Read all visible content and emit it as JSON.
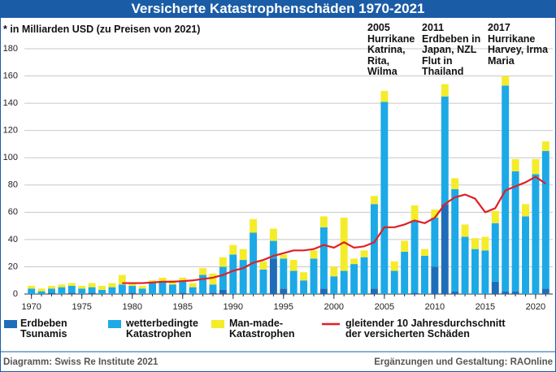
{
  "chart_data": {
    "type": "bar",
    "title": "Versicherte Katastrophenschäden 1970-2021",
    "subtitle": "* in Milliarden USD (zu Preisen von 2021)",
    "x": [
      1970,
      1971,
      1972,
      1973,
      1974,
      1975,
      1976,
      1977,
      1978,
      1979,
      1980,
      1981,
      1982,
      1983,
      1984,
      1985,
      1986,
      1987,
      1988,
      1989,
      1990,
      1991,
      1992,
      1993,
      1994,
      1995,
      1996,
      1997,
      1998,
      1999,
      2000,
      2001,
      2002,
      2003,
      2004,
      2005,
      2006,
      2007,
      2008,
      2009,
      2010,
      2011,
      2012,
      2013,
      2014,
      2015,
      2016,
      2017,
      2018,
      2019,
      2020,
      2021
    ],
    "xlim": [
      1969.3,
      2021.7
    ],
    "xticks": [
      1970,
      1975,
      1980,
      1985,
      1990,
      1995,
      2000,
      2005,
      2010,
      2015,
      2020
    ],
    "ylim": [
      0,
      180
    ],
    "yticks": [
      0,
      20,
      40,
      60,
      80,
      100,
      120,
      140,
      160,
      180
    ],
    "grid": true,
    "series": [
      {
        "name": "Erdbeben\nTsunamis",
        "type": "bar",
        "color": "#1f6db8",
        "values": [
          0,
          0,
          1,
          0,
          1,
          0,
          1,
          0,
          0,
          0,
          1,
          0,
          0,
          0,
          0,
          1,
          0,
          0,
          1,
          3,
          0,
          0,
          0,
          0,
          26,
          4,
          0,
          0,
          0,
          4,
          0,
          0,
          0,
          0,
          4,
          0,
          0,
          0,
          1,
          0,
          20,
          66,
          2,
          0,
          0,
          0,
          9,
          2,
          2,
          0,
          0,
          4
        ]
      },
      {
        "name": "wetterbedingte\nKatastrophen",
        "type": "bar",
        "color": "#1ca9e6",
        "values": [
          4,
          2,
          3,
          5,
          5,
          4,
          4,
          3,
          5,
          7,
          5,
          4,
          8,
          9,
          7,
          8,
          5,
          14,
          6,
          17,
          29,
          25,
          45,
          18,
          13,
          22,
          17,
          10,
          26,
          45,
          13,
          17,
          22,
          27,
          62,
          141,
          17,
          31,
          53,
          28,
          36,
          79,
          75,
          42,
          33,
          32,
          43,
          151,
          88,
          57,
          88,
          101
        ]
      },
      {
        "name": "Man-made-\nKatastrophen",
        "type": "bar",
        "color": "#f4ec2a",
        "values": [
          2,
          2,
          2,
          2,
          2,
          2,
          3,
          3,
          3,
          7,
          2,
          2,
          2,
          3,
          3,
          3,
          3,
          5,
          8,
          7,
          7,
          8,
          10,
          6,
          9,
          3,
          8,
          6,
          6,
          8,
          7,
          39,
          4,
          5,
          6,
          8,
          7,
          8,
          11,
          5,
          6,
          9,
          8,
          9,
          8,
          10,
          9,
          7,
          9,
          9,
          11,
          7
        ]
      },
      {
        "name": "gleitender 10 Jahresdurchschnitt\nder versicherten Schäden",
        "type": "line",
        "color": "#e01f26",
        "values": [
          null,
          null,
          null,
          null,
          null,
          null,
          null,
          null,
          null,
          8,
          8,
          8,
          8.5,
          9,
          9,
          9.5,
          10,
          11,
          12,
          14,
          17,
          19,
          23,
          25,
          28,
          30,
          32,
          32,
          33,
          36,
          34,
          38,
          34,
          35,
          38,
          49,
          49,
          51,
          54,
          52,
          56,
          66,
          71,
          73,
          70,
          60,
          63,
          76,
          79,
          82,
          86,
          81
        ]
      }
    ],
    "annotations": [
      "2005\nHurrikane\nKatrina,\nRita,\nWilma",
      "2011\nErdbeben in\nJapan, NZL\nFlut in\nThailand",
      "2017\nHurrikane\nHarvey, Irma\nMaria"
    ],
    "source": "Diagramm: Swiss Re Institute 2021",
    "credit": "Ergänzungen und Gestaltung: RAOnline"
  }
}
